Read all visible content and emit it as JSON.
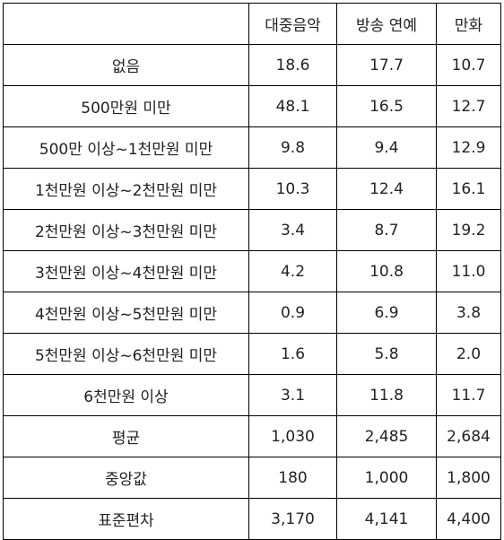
{
  "table": {
    "header": [
      "대중음악",
      "방송 연예",
      "만화"
    ],
    "rows": [
      [
        "없음",
        "18.6",
        "17.7",
        "10.7"
      ],
      [
        "500만원 미만",
        "48.1",
        "16.5",
        "12.7"
      ],
      [
        "500만 이상~1천만원 미만",
        "9.8",
        "9.4",
        "12.9"
      ],
      [
        "1천만원 이상~2천만원 미만",
        "10.3",
        "12.4",
        "16.1"
      ],
      [
        "2천만원 이상~3천만원 미만",
        "3.4",
        "8.7",
        "19.2"
      ],
      [
        "3천만원 이상~4천만원 미만",
        "4.2",
        "10.8",
        "11.0"
      ],
      [
        "4천만원 이상~5천만원 미만",
        "0.9",
        "6.9",
        "3.8"
      ],
      [
        "5천만원 이상~6천만원 미만",
        "1.6",
        "5.8",
        "2.0"
      ],
      [
        "6천만원 이상",
        "3.1",
        "11.8",
        "11.7"
      ],
      [
        "평균",
        "1,030",
        "2,485",
        "2,684"
      ],
      [
        "중앙값",
        "180",
        "1,000",
        "1,800"
      ],
      [
        "표준편차",
        "3,170",
        "4,141",
        "4,400"
      ]
    ]
  }
}
